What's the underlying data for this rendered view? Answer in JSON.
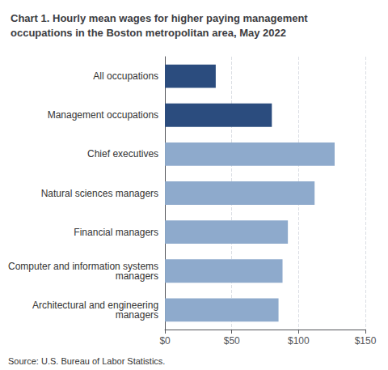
{
  "chart_data": {
    "type": "bar",
    "orientation": "horizontal",
    "title": "Chart 1. Hourly mean wages for higher paying management\noccupations in the Boston metropolitan area, May 2022",
    "annotations": [
      "Source: U.S. Bureau of Labor Statistics."
    ],
    "categories": [
      "Architectural and engineering\nmanagers",
      "Computer and information systems\nmanagers",
      "Financial managers",
      "Natural sciences managers",
      "Chief executives",
      "Management occupations",
      "All occupations"
    ],
    "values": [
      85,
      88,
      92,
      112,
      127,
      80,
      38
    ],
    "colors": [
      "#8eaacc",
      "#8eaacc",
      "#8eaacc",
      "#8eaacc",
      "#8eaacc",
      "#2b4c7e",
      "#2b4c7e"
    ],
    "xlim": [
      0,
      150
    ],
    "xticks": [
      {
        "value": 0,
        "label": "$0"
      },
      {
        "value": 50,
        "label": "$50"
      },
      {
        "value": 100,
        "label": "$100"
      },
      {
        "value": 150,
        "label": "$150"
      }
    ],
    "grid": true
  }
}
